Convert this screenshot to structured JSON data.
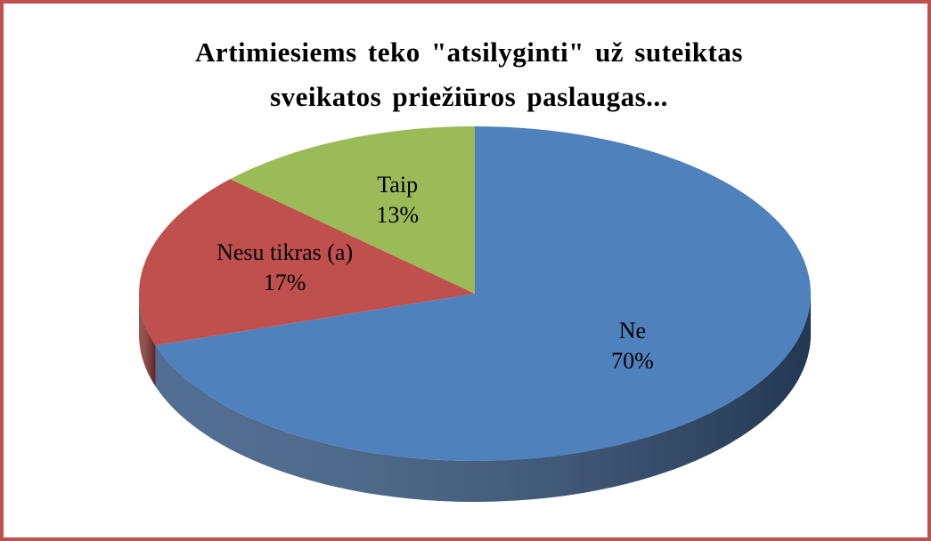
{
  "chart_data": {
    "type": "pie3d",
    "title": "Artimiesiems teko \"atsilyginti\" už suteiktas sveikatos priežiūros paslaugas...",
    "categories": [
      "Ne",
      "Nesu tikras (a)",
      "Taip"
    ],
    "values": [
      70,
      17,
      13
    ],
    "value_labels": [
      "70%",
      "17%",
      "13%"
    ],
    "colors": [
      "#4f81bd",
      "#c0504d",
      "#9bbb59"
    ],
    "side_colors": [
      "#34557f",
      "#8a3533",
      "#6f8a3c"
    ]
  }
}
